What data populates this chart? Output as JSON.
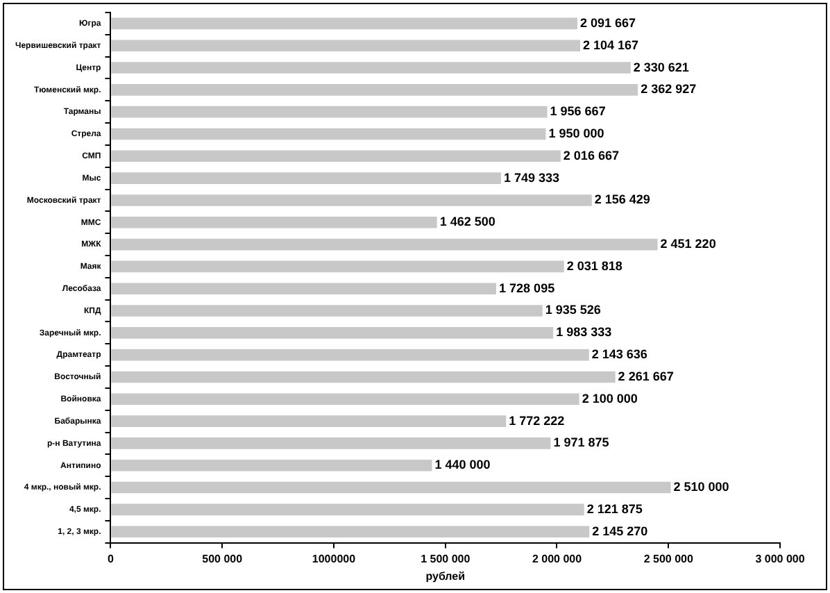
{
  "chart_data": {
    "type": "bar",
    "orientation": "horizontal",
    "xlabel": "рублей",
    "categories": [
      "Югра",
      "Червишевский тракт",
      "Центр",
      "Тюменский мкр.",
      "Тарманы",
      "Стрела",
      "СМП",
      "Мыс",
      "Московский тракт",
      "ММС",
      "МЖК",
      "Маяк",
      "Лесобаза",
      "КПД",
      "Заречный мкр.",
      "Драмтеатр",
      "Восточный",
      "Войновка",
      "Бабарынка",
      "р-н Ватутина",
      "Антипино",
      "4 мкр., новый мкр.",
      "4,5 мкр.",
      "1, 2, 3 мкр."
    ],
    "values": [
      2091667,
      2104167,
      2330621,
      2362927,
      1956667,
      1950000,
      2016667,
      1749333,
      2156429,
      1462500,
      2451220,
      2031818,
      1728095,
      1935526,
      1983333,
      2143636,
      2261667,
      2100000,
      1772222,
      1971875,
      1440000,
      2510000,
      2121875,
      2145270
    ],
    "color": "#c8c8c8",
    "data_labels": true,
    "grid": false,
    "legend": false,
    "xlim": [
      0,
      3000000
    ],
    "xticks": [
      0,
      {
        "value": 500000,
        "label": "500 000"
      },
      {
        "value": 1000000,
        "label": "1000000"
      },
      {
        "value": 1500000,
        "label": "1 500 000"
      },
      {
        "value": 2000000,
        "label": "2 000 000"
      },
      {
        "value": 2500000,
        "label": "2 500 000"
      },
      {
        "value": 3000000,
        "label": "3 000 000"
      }
    ]
  }
}
